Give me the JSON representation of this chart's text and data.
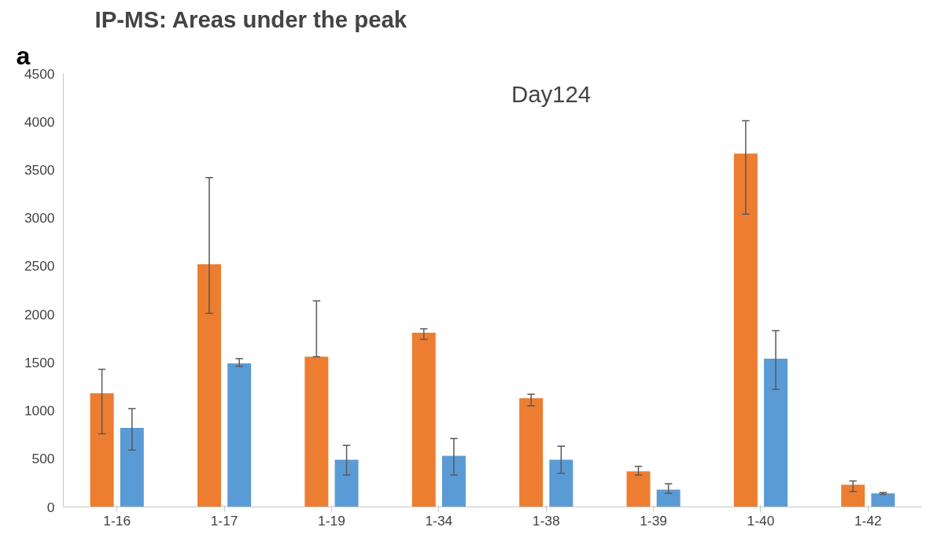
{
  "chart_data": {
    "type": "bar",
    "title": "IP-MS: Areas under the peak",
    "annotations": [
      "a",
      "Day124"
    ],
    "categories": [
      "1-16",
      "1-17",
      "1-19",
      "1-34",
      "1-38",
      "1-39",
      "1-40",
      "1-42"
    ],
    "series": [
      {
        "color": "#ed7d31",
        "values": [
          1180,
          2520,
          1560,
          1810,
          1130,
          370,
          3670,
          230
        ],
        "errors": [
          [
            760,
            1430
          ],
          [
            2010,
            3420
          ],
          [
            1560,
            2140
          ],
          [
            1740,
            1850
          ],
          [
            1050,
            1170
          ],
          [
            330,
            420
          ],
          [
            3040,
            4010
          ],
          [
            160,
            270
          ]
        ]
      },
      {
        "color": "#5b9bd5",
        "values": [
          820,
          1490,
          490,
          530,
          490,
          180,
          1540,
          140
        ],
        "errors": [
          [
            590,
            1020
          ],
          [
            1460,
            1540
          ],
          [
            330,
            640
          ],
          [
            330,
            710
          ],
          [
            350,
            630
          ],
          [
            140,
            240
          ],
          [
            1220,
            1830
          ],
          [
            130,
            150
          ]
        ]
      }
    ],
    "ylim": [
      0,
      4500
    ],
    "yticks": [
      0,
      500,
      1000,
      1500,
      2000,
      2500,
      3000,
      3500,
      4000,
      4500
    ],
    "grid": false
  }
}
